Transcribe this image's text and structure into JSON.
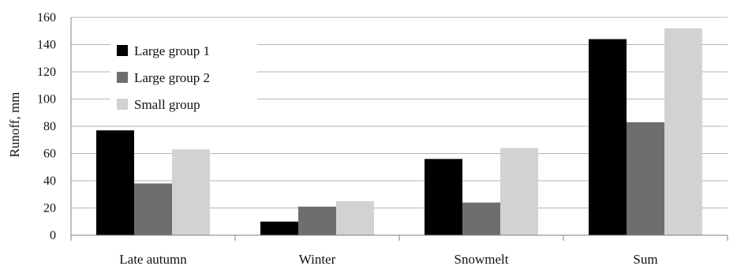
{
  "chart_data": {
    "type": "bar",
    "title": "",
    "xlabel": "",
    "ylabel": "Runoff, mm",
    "ylim": [
      0,
      160
    ],
    "yticks": [
      0,
      20,
      40,
      60,
      80,
      100,
      120,
      140,
      160
    ],
    "grid": true,
    "legend_position": "top-left",
    "categories": [
      "Late autumn",
      "Winter",
      "Snowmelt",
      "Sum"
    ],
    "series": [
      {
        "name": "Large group 1",
        "color": "#000000",
        "values": [
          77,
          10,
          56,
          144
        ]
      },
      {
        "name": "Large group 2",
        "color": "#6e6e6e",
        "values": [
          38,
          21,
          24,
          83
        ]
      },
      {
        "name": "Small group",
        "color": "#d2d2d2",
        "values": [
          63,
          25,
          64,
          152
        ]
      }
    ]
  }
}
